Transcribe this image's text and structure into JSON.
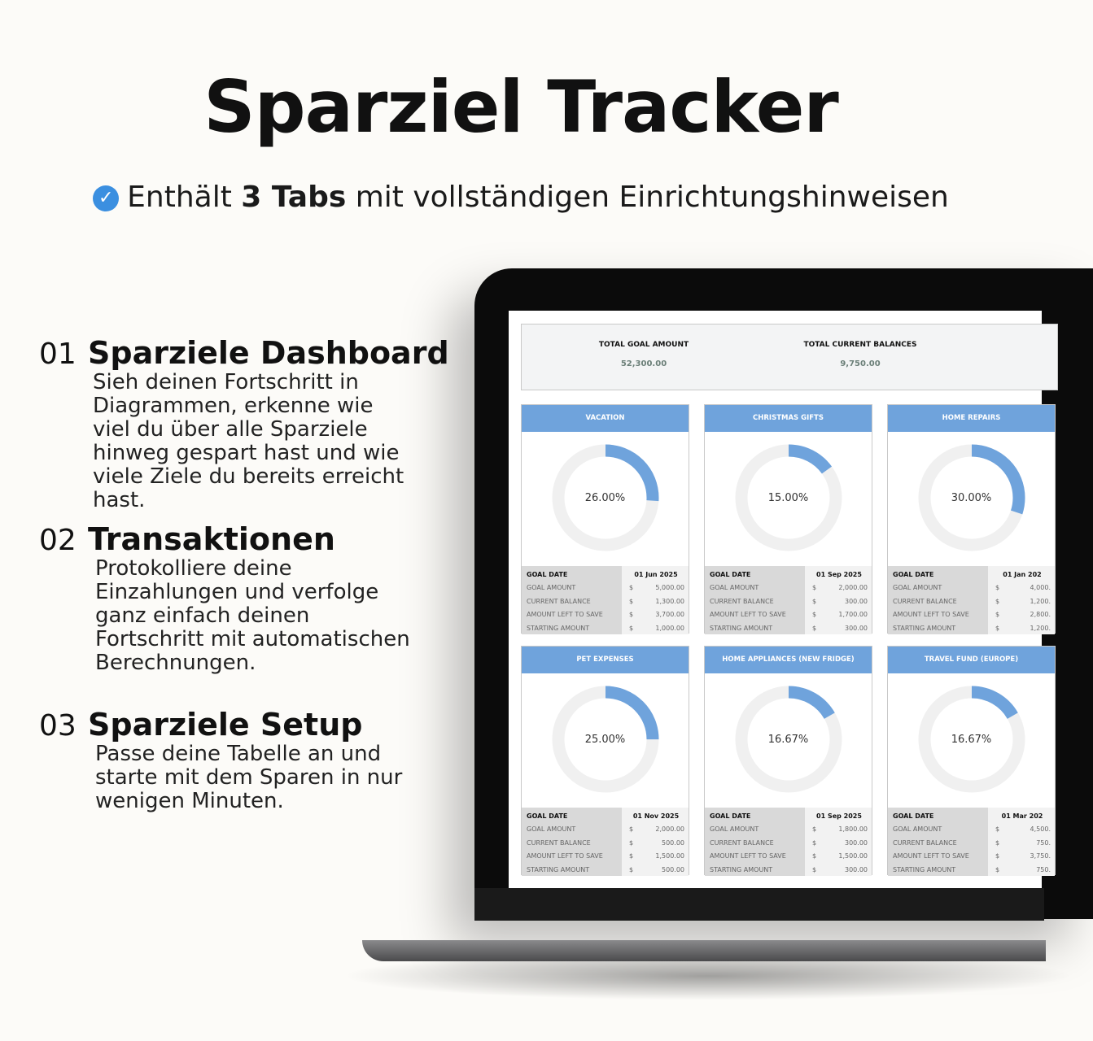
{
  "title": "Sparziel Tracker",
  "subtitle": {
    "pre": "Enthält ",
    "bold": "3 Tabs",
    "post": " mit vollständigen Einrichtungshinweisen",
    "icon": "check-circle-icon"
  },
  "features": [
    {
      "num": "01",
      "heading": "Sparziele Dashboard",
      "text": "Sieh deinen Fortschritt in Diagrammen, erkenne wie viel du über alle Sparziele hinweg gespart hast und wie viele Ziele du bereits erreicht hast."
    },
    {
      "num": "02",
      "heading": "Transaktionen",
      "text": "Protokolliere deine Einzahlungen und verfolge ganz einfach deinen Fortschritt mit automatischen Berechnungen."
    },
    {
      "num": "03",
      "heading": "Sparziele Setup",
      "text": "Passe deine Tabelle an und starte mit dem Sparen in nur wenigen Minuten."
    }
  ],
  "dashboard": {
    "totals": [
      {
        "label": "TOTAL GOAL AMOUNT",
        "value": "52,300.00"
      },
      {
        "label": "TOTAL CURRENT BALANCES",
        "value": "9,750.00"
      }
    ],
    "row_labels": [
      "GOAL DATE",
      "GOAL AMOUNT",
      "CURRENT BALANCE",
      "AMOUNT LEFT TO SAVE",
      "STARTING AMOUNT"
    ],
    "currency": "$",
    "colors": {
      "accent": "#6fa3dc",
      "ring": "#f0f0f0"
    },
    "goals": [
      {
        "name": "VACATION",
        "percent": 26.0,
        "percent_label": "26.00%",
        "date": "01 Jun 2025",
        "values": [
          "5,000.00",
          "1,300.00",
          "3,700.00",
          "1,000.00"
        ]
      },
      {
        "name": "CHRISTMAS GIFTS",
        "percent": 15.0,
        "percent_label": "15.00%",
        "date": "01 Sep 2025",
        "values": [
          "2,000.00",
          "300.00",
          "1,700.00",
          "300.00"
        ]
      },
      {
        "name": "HOME REPAIRS",
        "percent": 30.0,
        "percent_label": "30.00%",
        "date": "01 Jan 202",
        "values": [
          "4,000.",
          "1,200.",
          "2,800.",
          "1,200."
        ]
      },
      {
        "name": "PET EXPENSES",
        "percent": 25.0,
        "percent_label": "25.00%",
        "date": "01 Nov 2025",
        "values": [
          "2,000.00",
          "500.00",
          "1,500.00",
          "500.00"
        ]
      },
      {
        "name": "HOME APPLIANCES (NEW FRIDGE)",
        "percent": 16.67,
        "percent_label": "16.67%",
        "date": "01 Sep 2025",
        "values": [
          "1,800.00",
          "300.00",
          "1,500.00",
          "300.00"
        ]
      },
      {
        "name": "TRAVEL FUND (EUROPE)",
        "percent": 16.67,
        "percent_label": "16.67%",
        "date": "01 Mar 202",
        "values": [
          "4,500.",
          "750.",
          "3,750.",
          "750."
        ]
      }
    ]
  }
}
